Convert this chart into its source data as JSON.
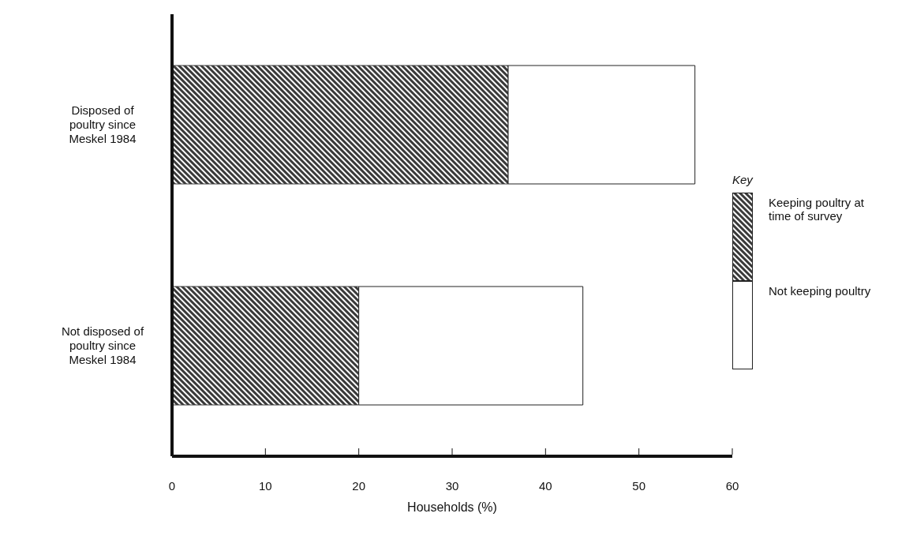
{
  "chart_data": {
    "type": "bar",
    "orientation": "horizontal",
    "stacked": true,
    "xlabel": "Households (%)",
    "legend_title": "Key",
    "legend": "right",
    "categories": [
      "Disposed of poultry since Meskel 1984",
      "Not disposed of poultry since Meskel 1984"
    ],
    "series": [
      {
        "name": "Keeping poultry at time of survey",
        "color": "#3a3a3a",
        "values": [
          36,
          20
        ]
      },
      {
        "name": "Not keeping poultry",
        "color": "#ffffff",
        "values": [
          20,
          24
        ]
      }
    ],
    "xlim": [
      0,
      60
    ],
    "xticks": [
      0,
      10,
      20,
      30,
      40,
      50,
      60
    ],
    "grid": false
  }
}
